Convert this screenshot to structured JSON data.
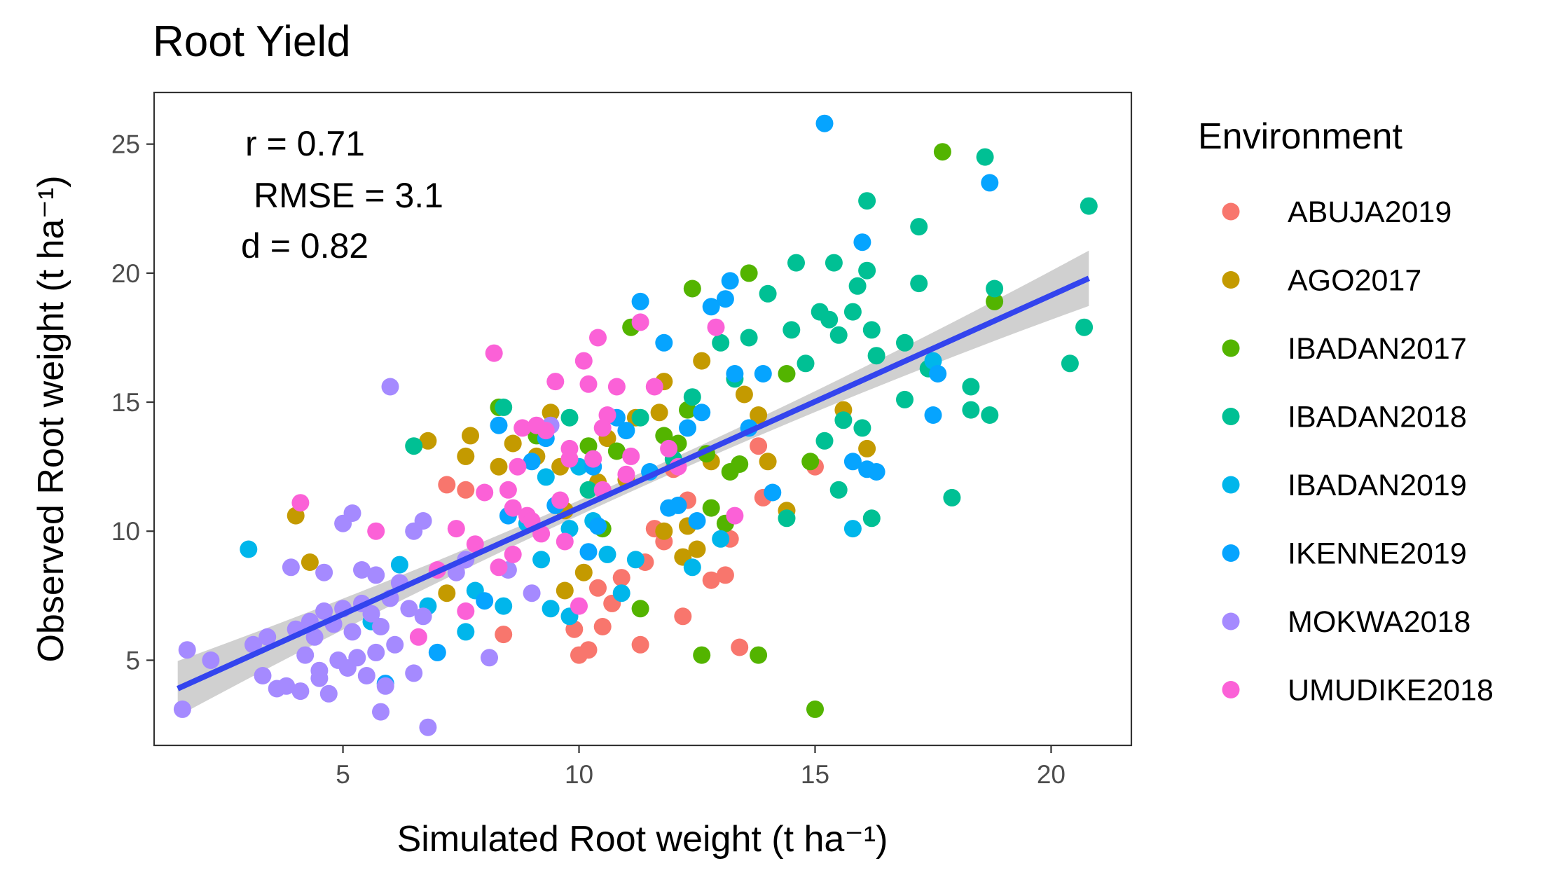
{
  "chart_data": {
    "type": "scatter",
    "title": "Root Yield",
    "xlabel": "Simulated Root weight (t ha⁻¹)",
    "ylabel": "Observed Root weight (t ha⁻¹)",
    "xlim": [
      1.0,
      21.7
    ],
    "ylim": [
      1.7,
      27.0
    ],
    "x_ticks": [
      5,
      10,
      15,
      20
    ],
    "y_ticks": [
      5,
      10,
      15,
      20,
      25
    ],
    "grid": false,
    "legend_title": "Environment",
    "legend_position": "right",
    "annotations": {
      "r": "r = 0.71",
      "rmse": "RMSE = 3.1",
      "d": "d = 0.82"
    },
    "fit_line": {
      "type": "linear",
      "color": "#3344ee",
      "band_color": "#c8c8c8",
      "start": [
        1.5,
        3.9
      ],
      "end": [
        20.8,
        19.8
      ]
    },
    "series": [
      {
        "name": "ABUJA2019",
        "color": "#F8766D",
        "points": [
          [
            7.2,
            11.8
          ],
          [
            7.6,
            11.6
          ],
          [
            8.4,
            6.0
          ],
          [
            9.9,
            6.2
          ],
          [
            10.0,
            5.2
          ],
          [
            10.2,
            5.4
          ],
          [
            10.5,
            6.3
          ],
          [
            10.7,
            7.2
          ],
          [
            10.9,
            8.2
          ],
          [
            11.3,
            5.6
          ],
          [
            11.4,
            8.8
          ],
          [
            11.8,
            9.6
          ],
          [
            12.2,
            6.7
          ],
          [
            12.8,
            8.1
          ],
          [
            13.1,
            8.3
          ],
          [
            13.4,
            5.5
          ],
          [
            13.8,
            13.3
          ],
          [
            13.9,
            11.3
          ],
          [
            15.0,
            12.5
          ],
          [
            11.6,
            10.1
          ],
          [
            12.3,
            11.2
          ],
          [
            13.2,
            9.7
          ],
          [
            12.0,
            12.4
          ],
          [
            10.4,
            7.8
          ]
        ]
      },
      {
        "name": "AGO2017",
        "color": "#C49A00",
        "points": [
          [
            4.0,
            10.6
          ],
          [
            4.3,
            8.8
          ],
          [
            6.8,
            13.5
          ],
          [
            7.2,
            7.6
          ],
          [
            7.6,
            12.9
          ],
          [
            7.7,
            13.7
          ],
          [
            8.3,
            12.5
          ],
          [
            8.6,
            13.4
          ],
          [
            9.1,
            12.9
          ],
          [
            9.4,
            14.6
          ],
          [
            9.6,
            12.5
          ],
          [
            10.4,
            11.9
          ],
          [
            10.6,
            13.6
          ],
          [
            11.0,
            12.0
          ],
          [
            11.2,
            14.4
          ],
          [
            11.7,
            14.6
          ],
          [
            11.8,
            10.0
          ],
          [
            11.8,
            15.8
          ],
          [
            12.2,
            9.0
          ],
          [
            12.5,
            9.3
          ],
          [
            12.6,
            16.6
          ],
          [
            12.8,
            12.7
          ],
          [
            13.5,
            15.3
          ],
          [
            13.8,
            14.5
          ],
          [
            14.0,
            12.7
          ],
          [
            14.4,
            10.8
          ],
          [
            15.6,
            14.7
          ],
          [
            16.1,
            13.2
          ],
          [
            9.7,
            10.8
          ],
          [
            10.1,
            8.4
          ],
          [
            9.7,
            7.7
          ],
          [
            12.3,
            10.2
          ]
        ]
      },
      {
        "name": "IBADAN2017",
        "color": "#53B400",
        "points": [
          [
            8.3,
            14.8
          ],
          [
            9.1,
            13.7
          ],
          [
            10.2,
            13.3
          ],
          [
            10.8,
            13.1
          ],
          [
            11.1,
            17.9
          ],
          [
            11.3,
            7.0
          ],
          [
            11.8,
            13.7
          ],
          [
            12.1,
            13.4
          ],
          [
            12.3,
            14.7
          ],
          [
            12.4,
            19.4
          ],
          [
            12.6,
            5.2
          ],
          [
            12.7,
            13.0
          ],
          [
            13.1,
            10.3
          ],
          [
            13.4,
            12.6
          ],
          [
            13.6,
            20.0
          ],
          [
            13.8,
            5.2
          ],
          [
            14.4,
            16.1
          ],
          [
            14.9,
            12.7
          ],
          [
            15.0,
            3.1
          ],
          [
            17.7,
            24.7
          ],
          [
            18.8,
            18.9
          ],
          [
            12.8,
            10.9
          ],
          [
            13.2,
            12.3
          ],
          [
            10.5,
            10.1
          ]
        ]
      },
      {
        "name": "IBADAN2018",
        "color": "#00C094",
        "points": [
          [
            6.5,
            13.3
          ],
          [
            8.4,
            14.8
          ],
          [
            9.8,
            14.4
          ],
          [
            10.2,
            11.6
          ],
          [
            11.3,
            14.4
          ],
          [
            12.0,
            12.8
          ],
          [
            12.4,
            15.2
          ],
          [
            13.0,
            17.3
          ],
          [
            13.3,
            15.9
          ],
          [
            13.6,
            17.5
          ],
          [
            14.0,
            19.2
          ],
          [
            14.5,
            17.8
          ],
          [
            14.6,
            20.4
          ],
          [
            14.8,
            16.5
          ],
          [
            15.1,
            18.5
          ],
          [
            15.3,
            18.2
          ],
          [
            15.4,
            20.4
          ],
          [
            15.5,
            17.6
          ],
          [
            15.6,
            14.3
          ],
          [
            15.8,
            18.5
          ],
          [
            15.9,
            19.5
          ],
          [
            16.0,
            14.0
          ],
          [
            16.1,
            20.1
          ],
          [
            16.2,
            17.8
          ],
          [
            16.3,
            16.8
          ],
          [
            16.1,
            22.8
          ],
          [
            16.9,
            17.3
          ],
          [
            17.2,
            21.8
          ],
          [
            17.2,
            19.6
          ],
          [
            17.4,
            16.3
          ],
          [
            17.9,
            11.3
          ],
          [
            18.3,
            15.6
          ],
          [
            18.3,
            14.7
          ],
          [
            18.6,
            24.5
          ],
          [
            18.7,
            14.5
          ],
          [
            18.8,
            19.4
          ],
          [
            20.4,
            16.5
          ],
          [
            20.7,
            17.9
          ],
          [
            20.8,
            22.6
          ],
          [
            15.5,
            11.6
          ],
          [
            16.2,
            10.5
          ],
          [
            15.2,
            13.5
          ],
          [
            14.4,
            10.5
          ],
          [
            16.9,
            15.1
          ]
        ]
      },
      {
        "name": "IBADAN2019",
        "color": "#00B6EB",
        "points": [
          [
            3.0,
            9.3
          ],
          [
            5.6,
            6.5
          ],
          [
            6.2,
            8.7
          ],
          [
            6.8,
            7.1
          ],
          [
            7.6,
            6.1
          ],
          [
            7.8,
            7.7
          ],
          [
            8.4,
            7.1
          ],
          [
            8.9,
            10.3
          ],
          [
            9.2,
            8.9
          ],
          [
            9.4,
            7.0
          ],
          [
            9.8,
            10.1
          ],
          [
            9.8,
            6.7
          ],
          [
            10.3,
            10.4
          ],
          [
            10.6,
            9.1
          ],
          [
            10.9,
            7.6
          ],
          [
            11.2,
            8.9
          ],
          [
            12.4,
            8.6
          ],
          [
            13.0,
            9.7
          ],
          [
            15.8,
            10.1
          ],
          [
            17.5,
            16.6
          ],
          [
            9.3,
            12.1
          ],
          [
            10.0,
            12.5
          ]
        ]
      },
      {
        "name": "IKENNE2019",
        "color": "#06A4FF",
        "points": [
          [
            5.9,
            4.1
          ],
          [
            7.0,
            5.3
          ],
          [
            8.0,
            7.3
          ],
          [
            8.3,
            14.1
          ],
          [
            8.5,
            10.6
          ],
          [
            9.0,
            12.7
          ],
          [
            9.3,
            13.6
          ],
          [
            9.5,
            11.0
          ],
          [
            10.3,
            12.5
          ],
          [
            10.4,
            10.2
          ],
          [
            10.8,
            14.4
          ],
          [
            11.0,
            13.9
          ],
          [
            11.3,
            18.9
          ],
          [
            11.5,
            12.3
          ],
          [
            11.8,
            17.3
          ],
          [
            12.1,
            11.0
          ],
          [
            12.3,
            14.0
          ],
          [
            12.6,
            14.6
          ],
          [
            12.8,
            18.7
          ],
          [
            13.1,
            19.0
          ],
          [
            13.2,
            19.7
          ],
          [
            13.3,
            16.1
          ],
          [
            13.6,
            14.0
          ],
          [
            13.9,
            16.1
          ],
          [
            14.1,
            11.5
          ],
          [
            15.2,
            25.8
          ],
          [
            15.8,
            12.7
          ],
          [
            16.0,
            21.2
          ],
          [
            16.1,
            12.4
          ],
          [
            16.3,
            12.3
          ],
          [
            17.5,
            14.5
          ],
          [
            17.6,
            16.1
          ],
          [
            18.7,
            23.5
          ],
          [
            12.5,
            10.4
          ],
          [
            11.9,
            10.9
          ],
          [
            10.2,
            9.2
          ]
        ]
      },
      {
        "name": "MOKWA2018",
        "color": "#A58AFF",
        "points": [
          [
            1.6,
            3.1
          ],
          [
            1.7,
            5.4
          ],
          [
            2.2,
            5.0
          ],
          [
            3.1,
            5.6
          ],
          [
            3.3,
            4.4
          ],
          [
            3.4,
            5.9
          ],
          [
            3.6,
            3.9
          ],
          [
            3.8,
            4.0
          ],
          [
            4.0,
            6.2
          ],
          [
            4.1,
            3.8
          ],
          [
            4.2,
            5.2
          ],
          [
            4.3,
            6.5
          ],
          [
            4.4,
            5.9
          ],
          [
            4.5,
            4.6
          ],
          [
            4.6,
            6.9
          ],
          [
            4.7,
            3.7
          ],
          [
            4.8,
            6.4
          ],
          [
            4.9,
            5.0
          ],
          [
            5.0,
            7.0
          ],
          [
            5.1,
            4.7
          ],
          [
            5.2,
            6.1
          ],
          [
            5.3,
            5.1
          ],
          [
            5.4,
            7.2
          ],
          [
            5.5,
            4.4
          ],
          [
            5.6,
            6.8
          ],
          [
            5.7,
            5.3
          ],
          [
            5.8,
            6.3
          ],
          [
            5.9,
            4.0
          ],
          [
            6.0,
            7.4
          ],
          [
            6.1,
            5.6
          ],
          [
            6.2,
            8.0
          ],
          [
            6.4,
            7.0
          ],
          [
            6.5,
            4.5
          ],
          [
            6.7,
            6.7
          ],
          [
            6.8,
            2.4
          ],
          [
            3.9,
            8.6
          ],
          [
            4.6,
            8.4
          ],
          [
            5.0,
            10.3
          ],
          [
            5.2,
            10.7
          ],
          [
            5.4,
            8.5
          ],
          [
            5.7,
            8.3
          ],
          [
            6.0,
            15.6
          ],
          [
            6.5,
            10.0
          ],
          [
            6.7,
            10.4
          ],
          [
            7.4,
            8.4
          ],
          [
            7.6,
            8.9
          ],
          [
            8.1,
            5.1
          ],
          [
            8.5,
            8.5
          ],
          [
            9.0,
            7.6
          ],
          [
            9.4,
            14.1
          ],
          [
            5.8,
            3.0
          ],
          [
            4.5,
            4.3
          ]
        ]
      },
      {
        "name": "UMUDIKE2018",
        "color": "#FB61D7",
        "points": [
          [
            4.1,
            11.1
          ],
          [
            5.7,
            10.0
          ],
          [
            6.6,
            5.9
          ],
          [
            7.0,
            8.5
          ],
          [
            7.4,
            10.1
          ],
          [
            7.6,
            6.9
          ],
          [
            7.8,
            9.5
          ],
          [
            8.0,
            11.5
          ],
          [
            8.2,
            16.9
          ],
          [
            8.3,
            8.6
          ],
          [
            8.5,
            11.6
          ],
          [
            8.6,
            9.1
          ],
          [
            8.7,
            12.5
          ],
          [
            8.8,
            14.0
          ],
          [
            8.9,
            10.6
          ],
          [
            9.1,
            14.1
          ],
          [
            9.2,
            9.9
          ],
          [
            9.3,
            13.9
          ],
          [
            9.5,
            15.8
          ],
          [
            9.6,
            11.2
          ],
          [
            9.7,
            9.6
          ],
          [
            9.8,
            13.2
          ],
          [
            10.0,
            7.1
          ],
          [
            10.1,
            16.6
          ],
          [
            10.2,
            15.7
          ],
          [
            10.3,
            12.8
          ],
          [
            10.4,
            17.5
          ],
          [
            10.5,
            11.6
          ],
          [
            10.6,
            14.5
          ],
          [
            10.8,
            15.6
          ],
          [
            11.0,
            12.2
          ],
          [
            11.3,
            18.1
          ],
          [
            11.6,
            15.6
          ],
          [
            11.9,
            13.2
          ],
          [
            12.1,
            12.5
          ],
          [
            12.9,
            17.9
          ],
          [
            13.3,
            10.6
          ],
          [
            8.6,
            10.9
          ],
          [
            9.0,
            10.4
          ],
          [
            11.1,
            12.9
          ],
          [
            10.5,
            14.0
          ],
          [
            9.8,
            12.8
          ]
        ]
      }
    ]
  }
}
